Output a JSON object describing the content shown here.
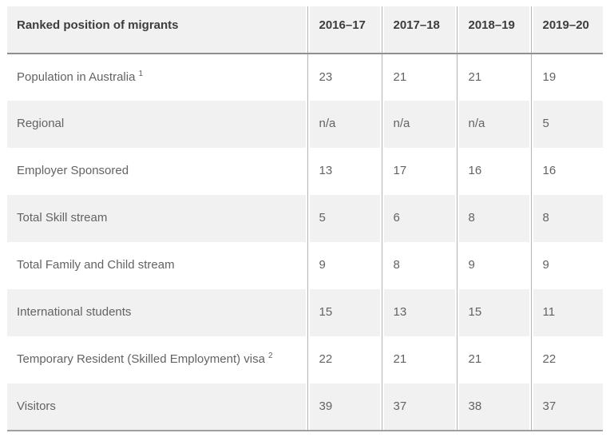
{
  "chart_data": {
    "type": "table",
    "title": "Ranked position of migrants",
    "columns": [
      "Ranked position of migrants",
      "2016–17",
      "2017–18",
      "2018–19",
      "2019–20"
    ],
    "rows": [
      {
        "label": "Population in Australia",
        "footnote": "1",
        "values": [
          "23",
          "21",
          "21",
          "19"
        ]
      },
      {
        "label": "Regional",
        "values": [
          "n/a",
          "n/a",
          "n/a",
          "5"
        ]
      },
      {
        "label": "Employer Sponsored",
        "values": [
          "13",
          "17",
          "16",
          "16"
        ]
      },
      {
        "label": "Total Skill stream",
        "values": [
          "5",
          "6",
          "8",
          "8"
        ]
      },
      {
        "label": "Total Family and Child stream",
        "values": [
          "9",
          "8",
          "9",
          "9"
        ]
      },
      {
        "label": "International students",
        "values": [
          "15",
          "13",
          "15",
          "11"
        ]
      },
      {
        "label": "Temporary Resident (Skilled Employment) visa",
        "footnote": "2",
        "values": [
          "22",
          "21",
          "21",
          "22"
        ]
      },
      {
        "label": "Visitors",
        "values": [
          "39",
          "37",
          "38",
          "37"
        ]
      }
    ]
  },
  "theme": {
    "header_bg": "#f1f1f1",
    "stripe_bg": "#f1f1f1",
    "divider": "#b4b4b4",
    "header_border": "#8f8f8f",
    "bottom_border": "#a0a0a0",
    "header_text": "#3d3d3d",
    "body_text": "#636363"
  }
}
